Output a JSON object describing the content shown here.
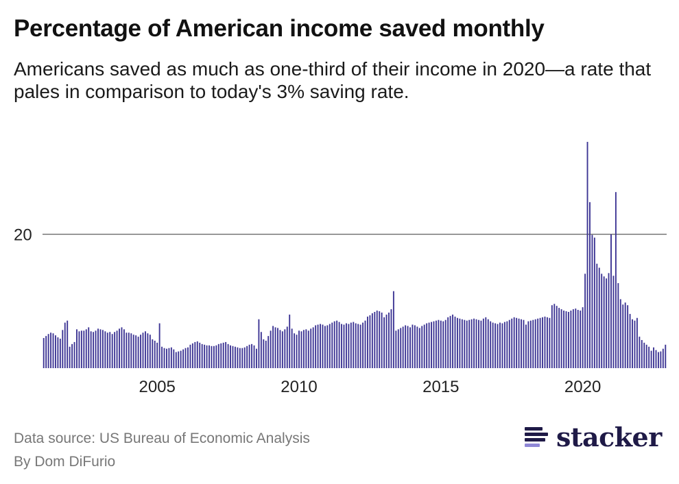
{
  "header": {
    "title": "Percentage of American income saved monthly",
    "subtitle": "Americans saved as much as one-third of their income in 2020—a rate that pales in comparison to today's 3% saving rate."
  },
  "footer": {
    "source": "Data source: US Bureau of Economic Analysis",
    "author": "By Dom DiFurio"
  },
  "brand": {
    "name": "stacker",
    "logo_icon": "stacker-stripes-icon",
    "logo_color": "#1f1a47",
    "logo_accent": "#8f87d6"
  },
  "chart_data": {
    "type": "bar",
    "title": "Percentage of American income saved monthly",
    "xlabel": "",
    "ylabel": "",
    "color": "#3d3594",
    "grid": false,
    "x_start": "2001-01",
    "x_end": "2022-12",
    "xlim": [
      "2001-01",
      "2022-12"
    ],
    "ylim": [
      0,
      34
    ],
    "y_ticks": [
      20
    ],
    "y_tick_labels": [
      "20"
    ],
    "x_ticks": [
      "2005-01",
      "2010-01",
      "2015-01",
      "2020-01"
    ],
    "x_tick_labels": [
      "2005",
      "2010",
      "2015",
      "2020"
    ],
    "values": [
      4.5,
      4.8,
      5.1,
      5.3,
      5.2,
      4.9,
      4.6,
      4.4,
      5.7,
      6.8,
      7.1,
      3.2,
      3.6,
      3.9,
      5.8,
      5.5,
      5.6,
      5.6,
      5.8,
      6.1,
      5.5,
      5.4,
      5.6,
      5.9,
      5.8,
      5.7,
      5.5,
      5.3,
      5.4,
      5.1,
      5.4,
      5.6,
      5.9,
      6.1,
      5.8,
      5.3,
      5.3,
      5.2,
      5.0,
      4.9,
      4.7,
      5.0,
      5.3,
      5.5,
      5.2,
      5.0,
      4.3,
      4.1,
      3.8,
      6.7,
      3.2,
      3.0,
      2.9,
      3.0,
      3.1,
      2.8,
      2.4,
      2.5,
      2.6,
      2.8,
      3.0,
      3.1,
      3.5,
      3.7,
      3.9,
      4.0,
      3.8,
      3.6,
      3.5,
      3.4,
      3.4,
      3.3,
      3.3,
      3.4,
      3.6,
      3.7,
      3.8,
      3.9,
      3.6,
      3.4,
      3.3,
      3.2,
      3.1,
      3.0,
      3.0,
      3.1,
      3.3,
      3.5,
      3.6,
      3.4,
      2.9,
      7.3,
      5.4,
      4.3,
      4.1,
      4.8,
      5.6,
      6.3,
      6.1,
      6.0,
      5.7,
      5.5,
      5.8,
      6.2,
      8.0,
      5.9,
      5.2,
      5.0,
      5.6,
      5.5,
      5.7,
      5.8,
      5.6,
      5.9,
      6.1,
      6.4,
      6.5,
      6.6,
      6.5,
      6.3,
      6.4,
      6.6,
      6.8,
      7.0,
      7.1,
      6.9,
      6.6,
      6.5,
      6.7,
      6.6,
      6.8,
      6.9,
      6.7,
      6.6,
      6.5,
      6.8,
      7.1,
      7.7,
      7.9,
      8.2,
      8.4,
      8.6,
      8.5,
      8.3,
      7.6,
      8.0,
      8.3,
      8.8,
      11.5,
      5.6,
      5.8,
      6.0,
      6.2,
      6.4,
      6.3,
      6.1,
      6.5,
      6.4,
      6.2,
      6.0,
      6.3,
      6.5,
      6.7,
      6.8,
      6.9,
      7.0,
      7.1,
      7.2,
      7.1,
      7.0,
      7.2,
      7.6,
      7.8,
      8.0,
      7.7,
      7.5,
      7.4,
      7.3,
      7.2,
      7.1,
      7.2,
      7.3,
      7.4,
      7.3,
      7.2,
      7.1,
      7.4,
      7.6,
      7.3,
      7.0,
      6.8,
      6.7,
      6.6,
      6.8,
      6.7,
      6.9,
      7.0,
      7.2,
      7.4,
      7.6,
      7.5,
      7.4,
      7.3,
      7.2,
      6.5,
      7.0,
      7.1,
      7.2,
      7.3,
      7.4,
      7.5,
      7.6,
      7.7,
      7.6,
      7.5,
      9.4,
      9.6,
      9.3,
      9.0,
      8.8,
      8.6,
      8.5,
      8.4,
      8.6,
      8.8,
      8.9,
      8.7,
      8.6,
      9.1,
      14.1,
      33.8,
      24.8,
      19.9,
      19.5,
      15.6,
      15.0,
      14.1,
      13.7,
      13.4,
      14.2,
      20.0,
      13.8,
      26.3,
      12.7,
      10.3,
      9.5,
      9.8,
      9.4,
      8.1,
      7.3,
      7.1,
      7.5,
      4.7,
      4.2,
      3.8,
      3.5,
      3.2,
      2.6,
      3.1,
      2.7,
      2.4,
      2.5,
      2.9,
      3.5
    ]
  }
}
